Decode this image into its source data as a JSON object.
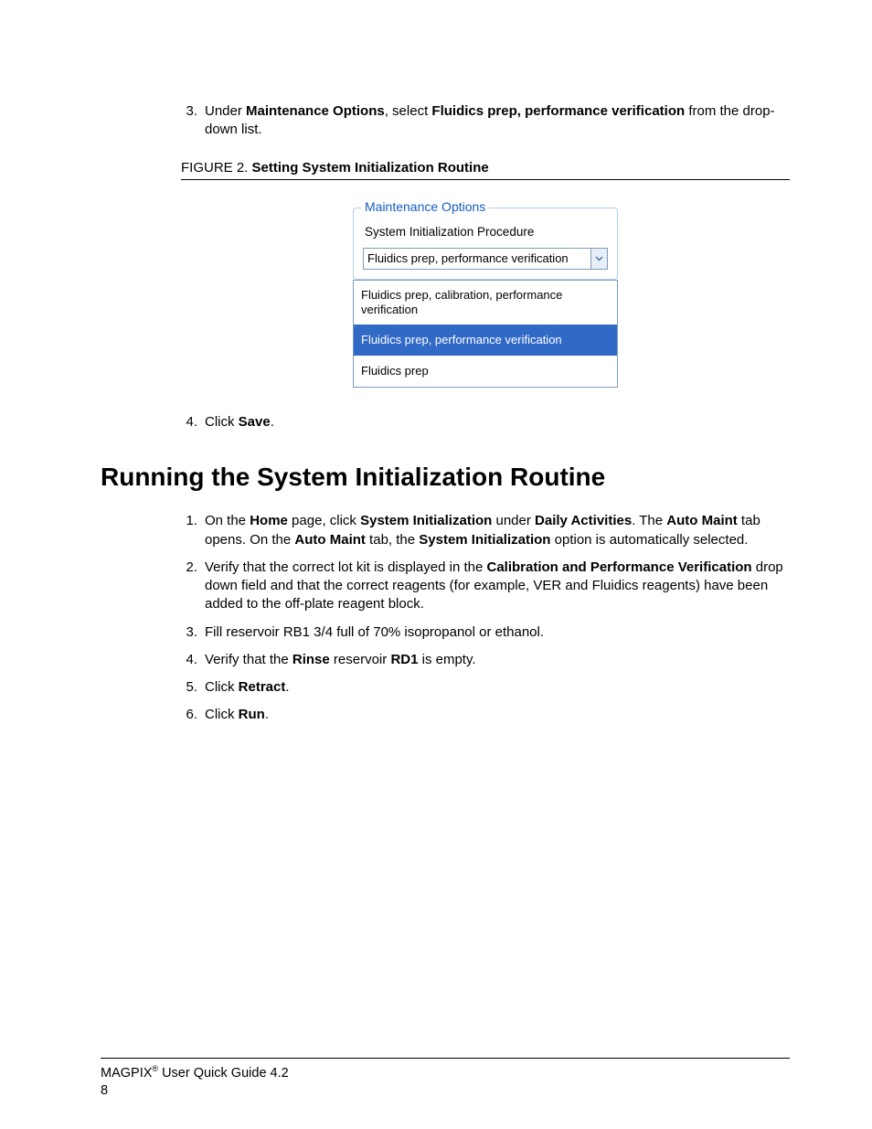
{
  "steps_a": [
    {
      "num": "3.",
      "html": "Under <b>Maintenance Options</b>, select <b>Fluidics prep, performance verification</b> from the drop-down list."
    }
  ],
  "figure": {
    "label": "FIGURE 2.",
    "title": "Setting System Initialization Routine",
    "legend": "Maintenance Options",
    "sublabel": "System Initialization Procedure",
    "selected_value": "Fluidics prep, performance verification",
    "options": [
      {
        "text": "Fluidics prep, calibration, performance verification",
        "selected": false
      },
      {
        "text": "Fluidics prep, performance verification",
        "selected": true
      },
      {
        "text": "Fluidics prep",
        "selected": false
      }
    ],
    "colors": {
      "fieldset_border": "#b5cde4",
      "legend_text": "#155cc3",
      "input_border": "#7f9db9",
      "dropdown_btn_bg": "#e7eef8",
      "selected_bg": "#3169c6",
      "selected_fg": "#ffffff"
    }
  },
  "steps_b": [
    {
      "num": "4.",
      "html": "Click <b>Save</b>."
    }
  ],
  "section_heading": "Running the System Initialization Routine",
  "steps_c": [
    {
      "num": "1.",
      "html": "On the <b>Home</b> page, click <b>System Initialization</b> under <b>Daily Activities</b>. The <b>Auto Maint</b> tab opens. On the <b>Auto Maint</b> tab, the <b>System Initialization</b> option is automatically selected."
    },
    {
      "num": "2.",
      "html": "Verify that the correct lot kit is displayed in the <b>Calibration and Performance Verification</b> drop down field and that the correct reagents (for example, VER and Fluidics reagents) have been added to the off-plate reagent block."
    },
    {
      "num": "3.",
      "html": "Fill reservoir RB1 3/4 full of 70% isopropanol or ethanol."
    },
    {
      "num": "4.",
      "html": "Verify that the <b>Rinse</b> reservoir <b>RD1</b> is empty."
    },
    {
      "num": "5.",
      "html": "Click <b>Retract</b>."
    },
    {
      "num": "6.",
      "html": "Click <b>Run</b>."
    }
  ],
  "footer": {
    "product": "MAGPIX",
    "reg": "®",
    "rest": " User Quick Guide 4.2",
    "page": "8"
  }
}
